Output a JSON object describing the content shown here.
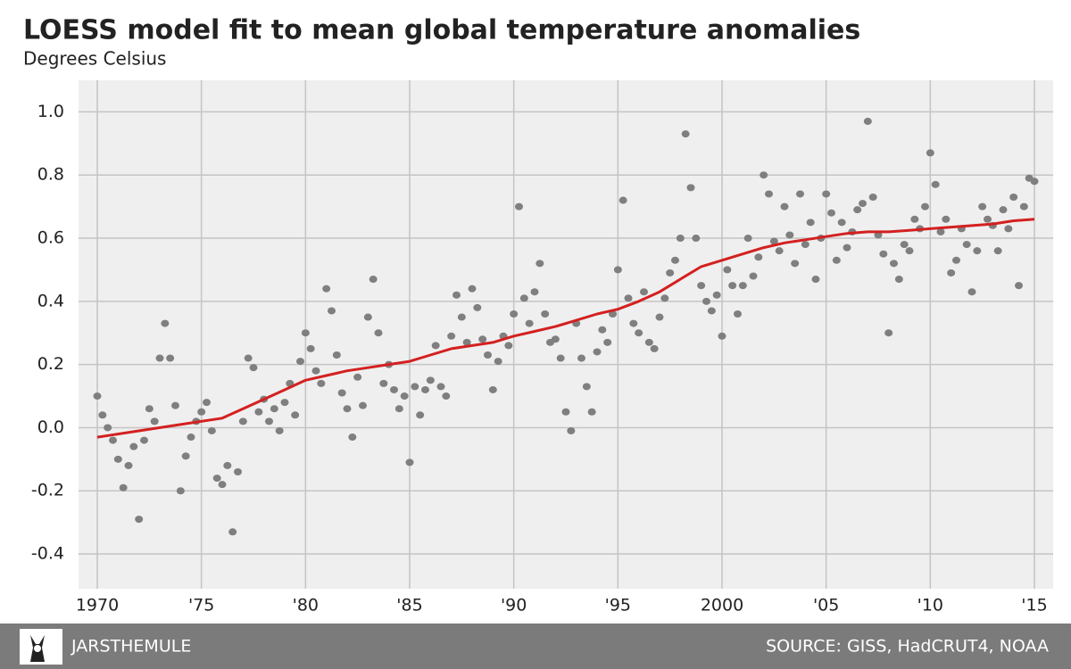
{
  "chart_data": {
    "type": "scatter",
    "title": "LOESS model fit to mean global temperature anomalies",
    "subtitle": "Degrees Celsius",
    "credit": "JARSTHEMULE",
    "source": "SOURCE: GISS, HadCRUT4, NOAA",
    "color": "#7f7f7f",
    "grid": true,
    "xlim": [
      1969.1,
      2015.9
    ],
    "ylim": [
      -0.51,
      1.1
    ],
    "xticks": [
      1970,
      {
        "value": 1975,
        "label": "'75"
      },
      {
        "value": 1980,
        "label": "'80"
      },
      {
        "value": 1985,
        "label": "'85"
      },
      {
        "value": 1990,
        "label": "'90"
      },
      {
        "value": 1995,
        "label": "'95"
      },
      2000,
      {
        "value": 2005,
        "label": "'05"
      },
      {
        "value": 2010,
        "label": "'10"
      },
      {
        "value": 2015,
        "label": "'15"
      }
    ],
    "yticks": [
      -0.4,
      -0.2,
      {
        "value": 0,
        "label": "0.0"
      },
      0.2,
      0.4,
      0.6,
      0.8,
      {
        "value": 1,
        "label": "1.0"
      }
    ],
    "x": [
      1970,
      1970.25,
      1970.5,
      1970.75,
      1971,
      1971.25,
      1971.5,
      1971.75,
      1972,
      1972.25,
      1972.5,
      1972.75,
      1973,
      1973.25,
      1973.5,
      1973.75,
      1974,
      1974.25,
      1974.5,
      1974.75,
      1975,
      1975.25,
      1975.5,
      1975.75,
      1976,
      1976.25,
      1976.5,
      1976.75,
      1977,
      1977.25,
      1977.5,
      1977.75,
      1978,
      1978.25,
      1978.5,
      1978.75,
      1979,
      1979.25,
      1979.5,
      1979.75,
      1980,
      1980.25,
      1980.5,
      1980.75,
      1981,
      1981.25,
      1981.5,
      1981.75,
      1982,
      1982.25,
      1982.5,
      1982.75,
      1983,
      1983.25,
      1983.5,
      1983.75,
      1984,
      1984.25,
      1984.5,
      1984.75,
      1985,
      1985.25,
      1985.5,
      1985.75,
      1986,
      1986.25,
      1986.5,
      1986.75,
      1987,
      1987.25,
      1987.5,
      1987.75,
      1988,
      1988.25,
      1988.5,
      1988.75,
      1989,
      1989.25,
      1989.5,
      1989.75,
      1990,
      1990.25,
      1990.5,
      1990.75,
      1991,
      1991.25,
      1991.5,
      1991.75,
      1992,
      1992.25,
      1992.5,
      1992.75,
      1993,
      1993.25,
      1993.5,
      1993.75,
      1994,
      1994.25,
      1994.5,
      1994.75,
      1995,
      1995.25,
      1995.5,
      1995.75,
      1996,
      1996.25,
      1996.5,
      1996.75,
      1997,
      1997.25,
      1997.5,
      1997.75,
      1998,
      1998.25,
      1998.5,
      1998.75,
      1999,
      1999.25,
      1999.5,
      1999.75,
      2000,
      2000.25,
      2000.5,
      2000.75,
      2001,
      2001.25,
      2001.5,
      2001.75,
      2002,
      2002.25,
      2002.5,
      2002.75,
      2003,
      2003.25,
      2003.5,
      2003.75,
      2004,
      2004.25,
      2004.5,
      2004.75,
      2005,
      2005.25,
      2005.5,
      2005.75,
      2006,
      2006.25,
      2006.5,
      2006.75,
      2007,
      2007.25,
      2007.5,
      2007.75,
      2008,
      2008.25,
      2008.5,
      2008.75,
      2009,
      2009.25,
      2009.5,
      2009.75,
      2010,
      2010.25,
      2010.5,
      2010.75,
      2011,
      2011.25,
      2011.5,
      2011.75,
      2012,
      2012.25,
      2012.5,
      2012.75,
      2013,
      2013.25,
      2013.5,
      2013.75,
      2014,
      2014.25,
      2014.5,
      2014.75,
      2015
    ],
    "values": [
      0.1,
      0.04,
      0.0,
      -0.04,
      -0.1,
      -0.19,
      -0.12,
      -0.06,
      -0.29,
      -0.04,
      0.06,
      0.02,
      0.22,
      0.33,
      0.22,
      0.07,
      -0.2,
      -0.09,
      -0.03,
      0.02,
      0.05,
      0.08,
      -0.01,
      -0.16,
      -0.18,
      -0.12,
      -0.33,
      -0.14,
      0.02,
      0.22,
      0.19,
      0.05,
      0.09,
      0.02,
      0.06,
      -0.01,
      0.08,
      0.14,
      0.04,
      0.21,
      0.3,
      0.25,
      0.18,
      0.14,
      0.44,
      0.37,
      0.23,
      0.11,
      0.06,
      -0.03,
      0.16,
      0.07,
      0.35,
      0.47,
      0.3,
      0.14,
      0.2,
      0.12,
      0.06,
      0.1,
      -0.11,
      0.13,
      0.04,
      0.12,
      0.15,
      0.26,
      0.13,
      0.1,
      0.29,
      0.42,
      0.35,
      0.27,
      0.44,
      0.38,
      0.28,
      0.23,
      0.12,
      0.21,
      0.29,
      0.26,
      0.36,
      0.7,
      0.41,
      0.33,
      0.43,
      0.52,
      0.36,
      0.27,
      0.28,
      0.22,
      0.05,
      -0.01,
      0.33,
      0.22,
      0.13,
      0.05,
      0.24,
      0.31,
      0.27,
      0.36,
      0.5,
      0.72,
      0.41,
      0.33,
      0.3,
      0.43,
      0.27,
      0.25,
      0.35,
      0.41,
      0.49,
      0.53,
      0.6,
      0.93,
      0.76,
      0.6,
      0.45,
      0.4,
      0.37,
      0.42,
      0.29,
      0.5,
      0.45,
      0.36,
      0.45,
      0.6,
      0.48,
      0.54,
      0.8,
      0.74,
      0.59,
      0.56,
      0.7,
      0.61,
      0.52,
      0.74,
      0.58,
      0.65,
      0.47,
      0.6,
      0.74,
      0.68,
      0.53,
      0.65,
      0.57,
      0.62,
      0.69,
      0.71,
      0.97,
      0.73,
      0.61,
      0.55,
      0.3,
      0.52,
      0.47,
      0.58,
      0.56,
      0.66,
      0.63,
      0.7,
      0.87,
      0.77,
      0.62,
      0.66,
      0.49,
      0.53,
      0.63,
      0.58,
      0.43,
      0.56,
      0.7,
      0.66,
      0.64,
      0.56,
      0.69,
      0.63,
      0.73,
      0.45,
      0.7,
      0.79,
      0.78
    ],
    "fit": {
      "color": "#d42020",
      "x": [
        1970,
        1972,
        1974,
        1976,
        1977,
        1978,
        1979,
        1980,
        1981,
        1982,
        1983,
        1984,
        1985,
        1986,
        1987,
        1988,
        1989,
        1990,
        1991,
        1992,
        1993,
        1994,
        1995,
        1996,
        1997,
        1998,
        1999,
        2000,
        2001,
        2002,
        2003,
        2004,
        2005,
        2006,
        2007,
        2008,
        2009,
        2010,
        2011,
        2012,
        2013,
        2014,
        2015
      ],
      "values": [
        -0.03,
        -0.01,
        0.01,
        0.03,
        0.06,
        0.09,
        0.12,
        0.15,
        0.165,
        0.18,
        0.19,
        0.2,
        0.21,
        0.23,
        0.25,
        0.26,
        0.27,
        0.29,
        0.305,
        0.32,
        0.34,
        0.36,
        0.375,
        0.4,
        0.43,
        0.47,
        0.51,
        0.53,
        0.55,
        0.57,
        0.585,
        0.595,
        0.605,
        0.615,
        0.62,
        0.62,
        0.625,
        0.63,
        0.635,
        0.64,
        0.645,
        0.655,
        0.66
      ]
    }
  }
}
